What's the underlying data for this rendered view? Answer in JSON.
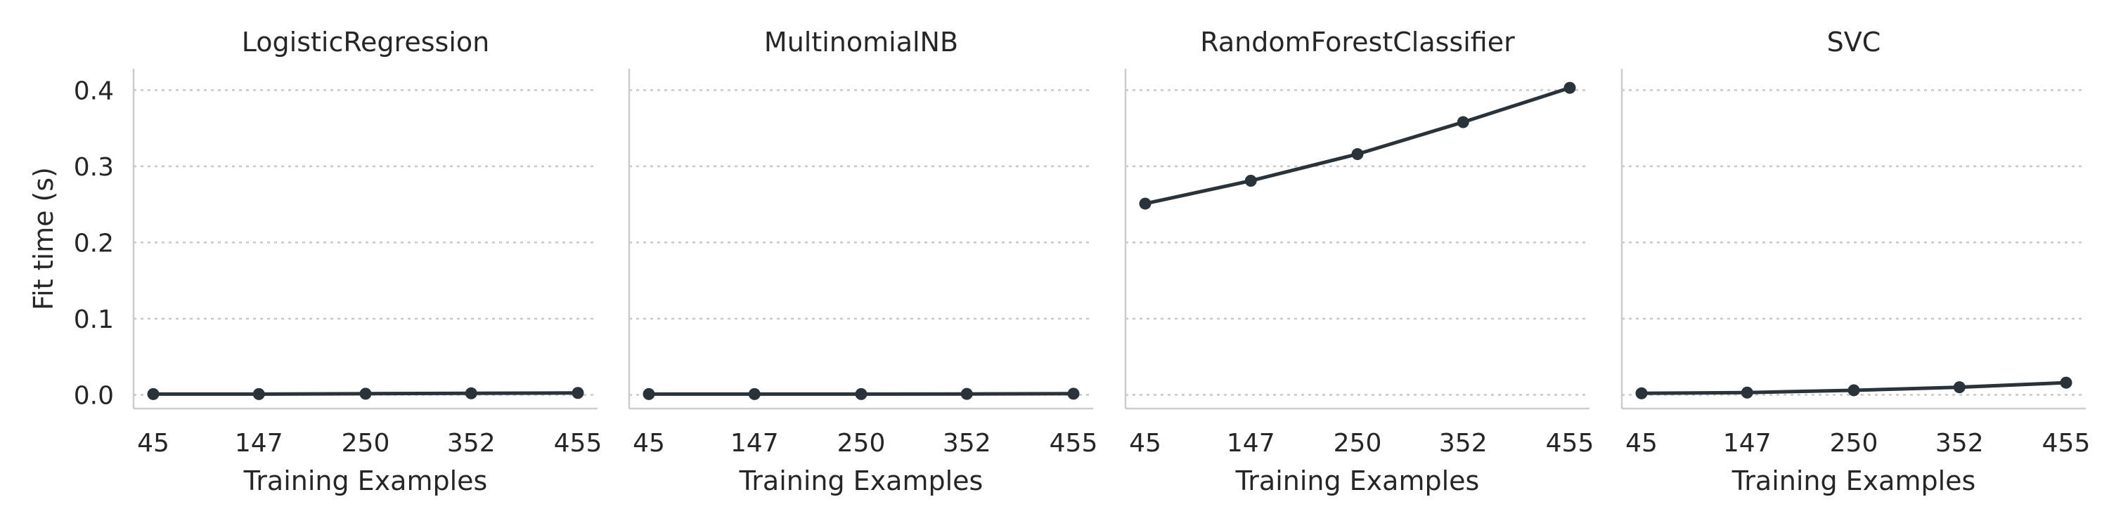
{
  "chart_data": {
    "type": "line",
    "sharey": true,
    "ylabel": "Fit time (s)",
    "xlabel": "Training Examples",
    "x": [
      45,
      147,
      250,
      352,
      455
    ],
    "x_ticks": [
      "45",
      "147",
      "250",
      "352",
      "455"
    ],
    "ylim": [
      -0.018,
      0.428
    ],
    "y_ticks": [
      0.0,
      0.1,
      0.2,
      0.3,
      0.4
    ],
    "y_tick_labels": [
      "0.0",
      "0.1",
      "0.2",
      "0.3",
      "0.4"
    ],
    "grid": "horizontal dotted",
    "color": "#2a323a",
    "panels": [
      {
        "title": "LogisticRegression",
        "values": [
          0.001,
          0.001,
          0.0015,
          0.002,
          0.0025
        ]
      },
      {
        "title": "MultinomialNB",
        "values": [
          0.001,
          0.001,
          0.001,
          0.0012,
          0.0015
        ]
      },
      {
        "title": "RandomForestClassifier",
        "values": [
          0.251,
          0.281,
          0.316,
          0.358,
          0.403
        ]
      },
      {
        "title": "SVC",
        "values": [
          0.002,
          0.003,
          0.006,
          0.01,
          0.016
        ]
      }
    ]
  }
}
